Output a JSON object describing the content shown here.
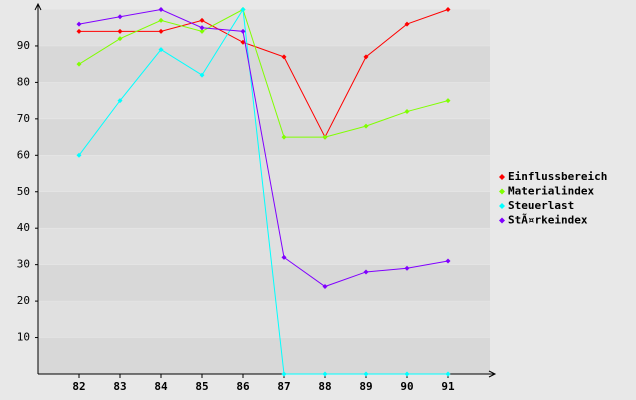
{
  "chart_data": {
    "type": "line",
    "categories": [
      "82",
      "83",
      "84",
      "85",
      "86",
      "87",
      "88",
      "89",
      "90",
      "91"
    ],
    "series": [
      {
        "name": "Einflussbereich",
        "color": "#ff0000",
        "values": [
          94,
          94,
          94,
          97,
          91,
          87,
          65,
          87,
          96,
          100
        ]
      },
      {
        "name": "Materialindex",
        "color": "#80ff00",
        "values": [
          85,
          92,
          97,
          94,
          100,
          65,
          65,
          68,
          72,
          75
        ]
      },
      {
        "name": "Steuerlast",
        "color": "#00ffff",
        "values": [
          60,
          75,
          89,
          82,
          100,
          0,
          0,
          0,
          0,
          0
        ]
      },
      {
        "name": "StÃ¤rkeindex",
        "color": "#8000ff",
        "values": [
          96,
          98,
          100,
          95,
          94,
          32,
          24,
          28,
          29,
          31
        ]
      }
    ],
    "ylim": [
      0,
      100
    ],
    "yticks": [
      10,
      20,
      30,
      40,
      50,
      60,
      70,
      80,
      90
    ],
    "grid": true,
    "legend": "right"
  }
}
